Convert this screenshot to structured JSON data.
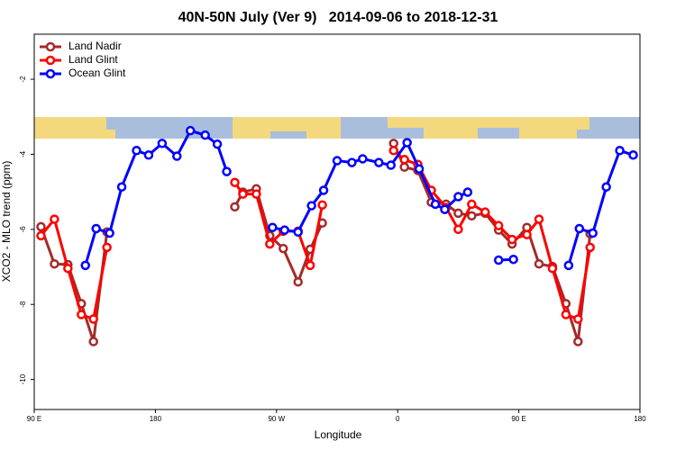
{
  "chart_data": {
    "type": "line",
    "title": "40N-50N July (Ver 9)   2014-09-06 to 2018-12-31",
    "xlabel": "Longitude",
    "ylabel": "XCO2 - MLO trend (ppm)",
    "xlim": [
      90,
      540
    ],
    "ylim": [
      -10.8,
      -0.8
    ],
    "xticks": [
      {
        "value": 90,
        "label": "90 E"
      },
      180,
      {
        "value": 270,
        "label": "90 W"
      },
      {
        "value": 360,
        "label": "0"
      },
      {
        "value": 450,
        "label": "90 E"
      },
      {
        "value": 540,
        "label": "180"
      }
    ],
    "yticks": [
      -10,
      -8,
      -6,
      -4,
      -2
    ],
    "grid": false,
    "legend": "upper left",
    "series": [
      {
        "name": "Land Nadir",
        "color": "#a52a2a",
        "x": [
          95,
          105,
          115,
          125,
          134,
          144,
          null,
          239,
          245,
          255,
          265,
          275,
          286,
          295,
          304,
          null,
          357,
          365,
          375,
          385,
          396,
          405,
          415,
          425,
          435,
          445,
          456,
          465,
          475,
          485,
          494,
          503
        ],
        "values": [
          -5.93,
          -6.92,
          -6.94,
          -7.98,
          -8.99,
          -6.07,
          null,
          -5.4,
          -5.01,
          -4.92,
          -6.17,
          -6.51,
          -7.4,
          -6.53,
          -5.83,
          null,
          -3.71,
          -4.34,
          -4.43,
          -5.28,
          -5.33,
          -5.57,
          -5.64,
          -5.57,
          -6.02,
          -6.39,
          -5.95,
          -6.92,
          -6.99,
          -7.98,
          -8.99,
          -6.12
        ]
      },
      {
        "name": "Land Glint",
        "color": "#ff0000",
        "x": [
          95,
          105,
          115,
          125,
          134,
          144,
          null,
          239,
          245,
          255,
          265,
          275,
          286,
          295,
          304,
          null,
          357,
          365,
          375,
          385,
          396,
          405,
          415,
          425,
          435,
          445,
          456,
          465,
          475,
          485,
          494,
          503
        ],
        "values": [
          -6.17,
          -5.73,
          -7.04,
          -8.27,
          -8.39,
          -6.48,
          null,
          -4.75,
          -5.06,
          -5.06,
          -6.39,
          -6.05,
          -6.05,
          -6.96,
          -5.35,
          null,
          -3.9,
          -4.14,
          -4.27,
          -4.96,
          -5.42,
          -6.0,
          -5.33,
          -5.54,
          -5.9,
          -6.27,
          -6.14,
          -5.73,
          -7.04,
          -8.27,
          -8.39,
          -6.48
        ]
      },
      {
        "name": "Ocean Glint",
        "color": "#0000ff",
        "x": [
          128,
          136,
          146,
          155,
          166,
          175,
          185,
          196,
          206,
          217,
          226,
          233,
          null,
          267,
          276,
          286,
          296,
          305,
          315,
          326,
          334,
          346,
          355,
          367,
          376,
          388,
          395,
          405,
          412,
          null,
          435,
          446,
          null,
          487,
          495,
          505,
          515,
          525,
          535
        ],
        "values": [
          -6.96,
          -5.98,
          -6.1,
          -4.87,
          -3.9,
          -4.02,
          -3.71,
          -4.05,
          -3.37,
          -3.49,
          -3.73,
          -4.46,
          null,
          -5.95,
          -6.02,
          -6.07,
          -5.37,
          -4.96,
          -4.17,
          -4.22,
          -4.12,
          -4.22,
          -4.29,
          -3.69,
          -4.39,
          -5.33,
          -5.47,
          -5.13,
          -5.01,
          null,
          -6.82,
          -6.8,
          null,
          -6.96,
          -5.98,
          -6.1,
          -4.87,
          -3.9,
          -4.02
        ]
      }
    ]
  }
}
